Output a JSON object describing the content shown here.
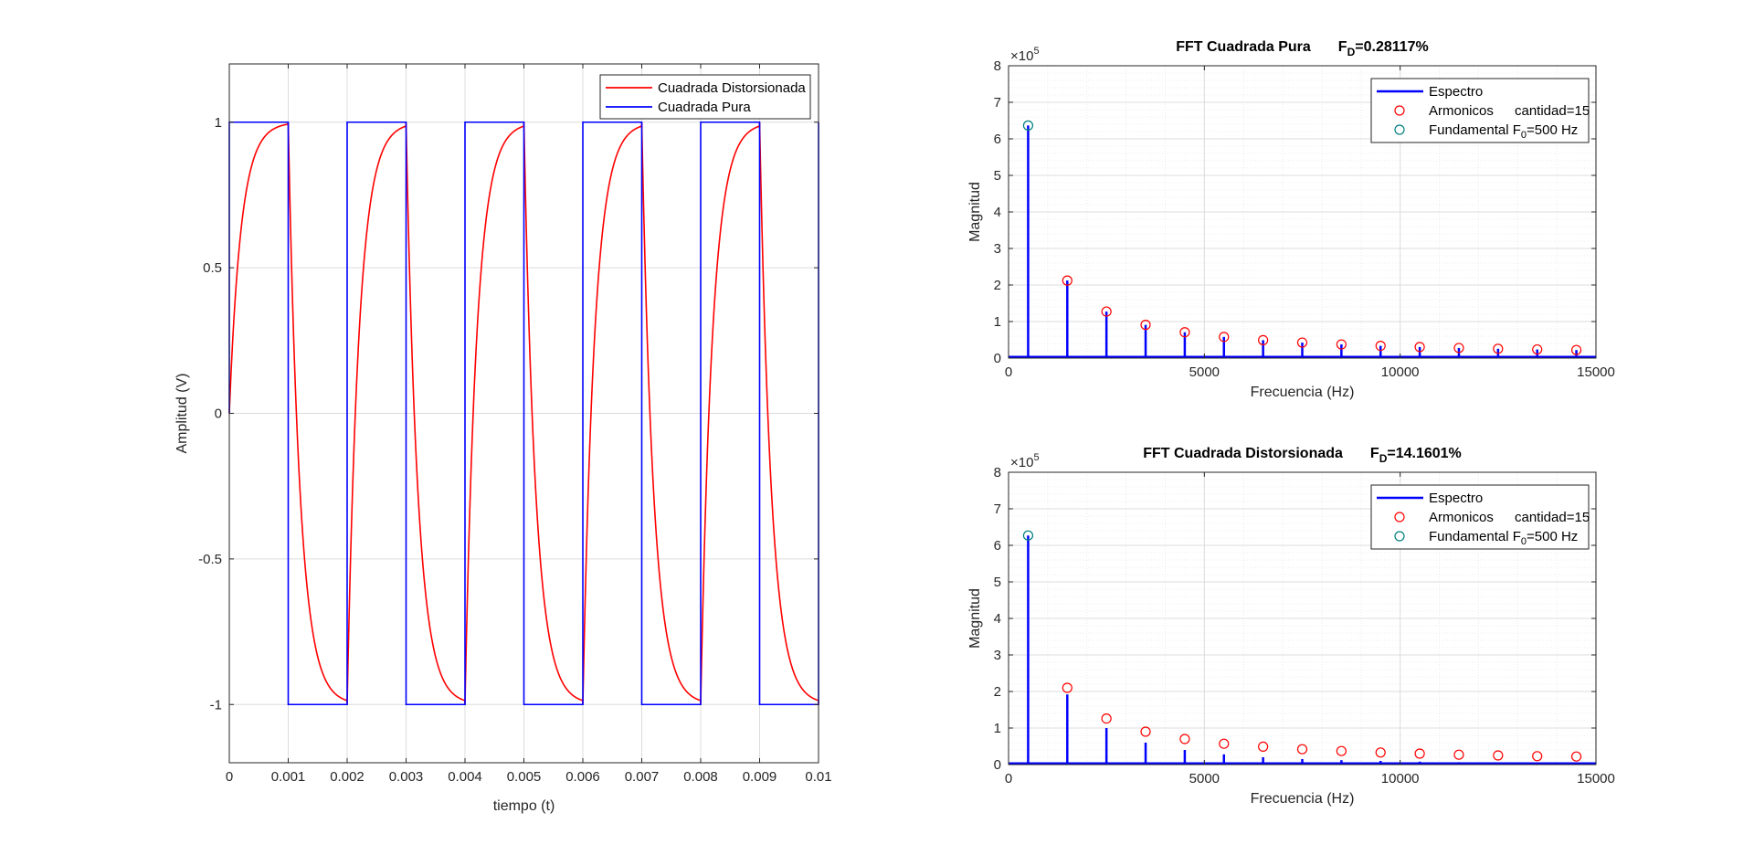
{
  "chart_data": [
    {
      "type": "line",
      "title": "",
      "xlabel": "tiempo (t)",
      "ylabel": "Amplitud (V)",
      "xlim": [
        0,
        0.01
      ],
      "ylim": [
        -1.2,
        1.2
      ],
      "xticks": [
        0,
        0.001,
        0.002,
        0.003,
        0.004,
        0.005,
        0.006,
        0.007,
        0.008,
        0.009,
        0.01
      ],
      "xticklabels": [
        "0",
        "0.001",
        "0.002",
        "0.003",
        "0.004",
        "0.005",
        "0.006",
        "0.007",
        "0.008",
        "0.009",
        "0.01"
      ],
      "yticks": [
        -1,
        -0.5,
        0,
        0.5,
        1
      ],
      "yticklabels": [
        "-1",
        "-0.5",
        "0",
        "0.5",
        "1"
      ],
      "grid": true,
      "legend_position": "top-right",
      "square_period": 0.002,
      "square_amplitude": 1,
      "series": [
        {
          "name": "Cuadrada Distorsionada",
          "color": "#ff0000",
          "style": "first-order-response",
          "time_constant": 0.0002
        },
        {
          "name": "Cuadrada Pura",
          "color": "#0000ff",
          "style": "square"
        }
      ]
    },
    {
      "type": "stem",
      "title": "FFT Cuadrada Pura",
      "fd_label": "F",
      "fd_sub": "D",
      "fd_value": "=0.28117%",
      "xlabel": "Frecuencia (Hz)",
      "ylabel": "Magnitud",
      "xlim": [
        0,
        15000
      ],
      "ylim": [
        0,
        800000
      ],
      "xticks": [
        0,
        5000,
        10000,
        15000
      ],
      "xticklabels": [
        "0",
        "5000",
        "10000",
        "15000"
      ],
      "yticks": [
        0,
        100000,
        200000,
        300000,
        400000,
        500000,
        600000,
        700000,
        800000
      ],
      "yticklabels": [
        "0",
        "1",
        "2",
        "3",
        "4",
        "5",
        "6",
        "7",
        "8"
      ],
      "exponent_base": "×10",
      "exponent_power": "5",
      "grid": true,
      "legend_position": "top-right",
      "spectrum_color": "#0000ff",
      "harmonic_color": "#ff0000",
      "fundamental_color": "#007f7f",
      "legend": {
        "spectrum": "Espectro",
        "harmonics": "Armonicos",
        "harmonics_count": "cantidad=15",
        "fundamental_prefix": "Fundamental F",
        "fundamental_sub": "0",
        "fundamental_suffix": "=500 Hz"
      },
      "frequencies": [
        500,
        1500,
        2500,
        3500,
        4500,
        5500,
        6500,
        7500,
        8500,
        9500,
        10500,
        11500,
        12500,
        13500,
        14500
      ],
      "stem_values": [
        636600,
        212200,
        127300,
        90900,
        70700,
        57900,
        49000,
        42400,
        37400,
        33500,
        30300,
        27700,
        25500,
        23600,
        22000
      ],
      "marker_values": [
        636600,
        212200,
        127300,
        90900,
        70700,
        57900,
        49000,
        42400,
        37400,
        33500,
        30300,
        27700,
        25500,
        23600,
        22000
      ]
    },
    {
      "type": "stem",
      "title": "FFT Cuadrada Distorsionada",
      "fd_label": "F",
      "fd_sub": "D",
      "fd_value": "=14.1601%",
      "xlabel": "Frecuencia (Hz)",
      "ylabel": "Magnitud",
      "xlim": [
        0,
        15000
      ],
      "ylim": [
        0,
        800000
      ],
      "xticks": [
        0,
        5000,
        10000,
        15000
      ],
      "xticklabels": [
        "0",
        "5000",
        "10000",
        "15000"
      ],
      "yticks": [
        0,
        100000,
        200000,
        300000,
        400000,
        500000,
        600000,
        700000,
        800000
      ],
      "yticklabels": [
        "0",
        "1",
        "2",
        "3",
        "4",
        "5",
        "6",
        "7",
        "8"
      ],
      "exponent_base": "×10",
      "exponent_power": "5",
      "grid": true,
      "legend_position": "top-right",
      "spectrum_color": "#0000ff",
      "harmonic_color": "#ff0000",
      "fundamental_color": "#007f7f",
      "legend": {
        "spectrum": "Espectro",
        "harmonics": "Armonicos",
        "harmonics_count": "cantidad=15",
        "fundamental_prefix": "Fundamental F",
        "fundamental_sub": "0",
        "fundamental_suffix": "=500 Hz"
      },
      "frequencies": [
        500,
        1500,
        2500,
        3500,
        4500,
        5500,
        6500,
        7500,
        8500,
        9500,
        10500,
        11500,
        12500,
        13500,
        14500
      ],
      "stem_values": [
        627000,
        192000,
        100000,
        60000,
        40000,
        28000,
        20000,
        15000,
        12000,
        10000,
        8000,
        6500,
        5500,
        4500,
        4000
      ],
      "marker_values": [
        627000,
        210000,
        126000,
        90000,
        70000,
        57000,
        49000,
        42000,
        37000,
        33000,
        30000,
        27000,
        25000,
        23000,
        22000
      ]
    }
  ]
}
